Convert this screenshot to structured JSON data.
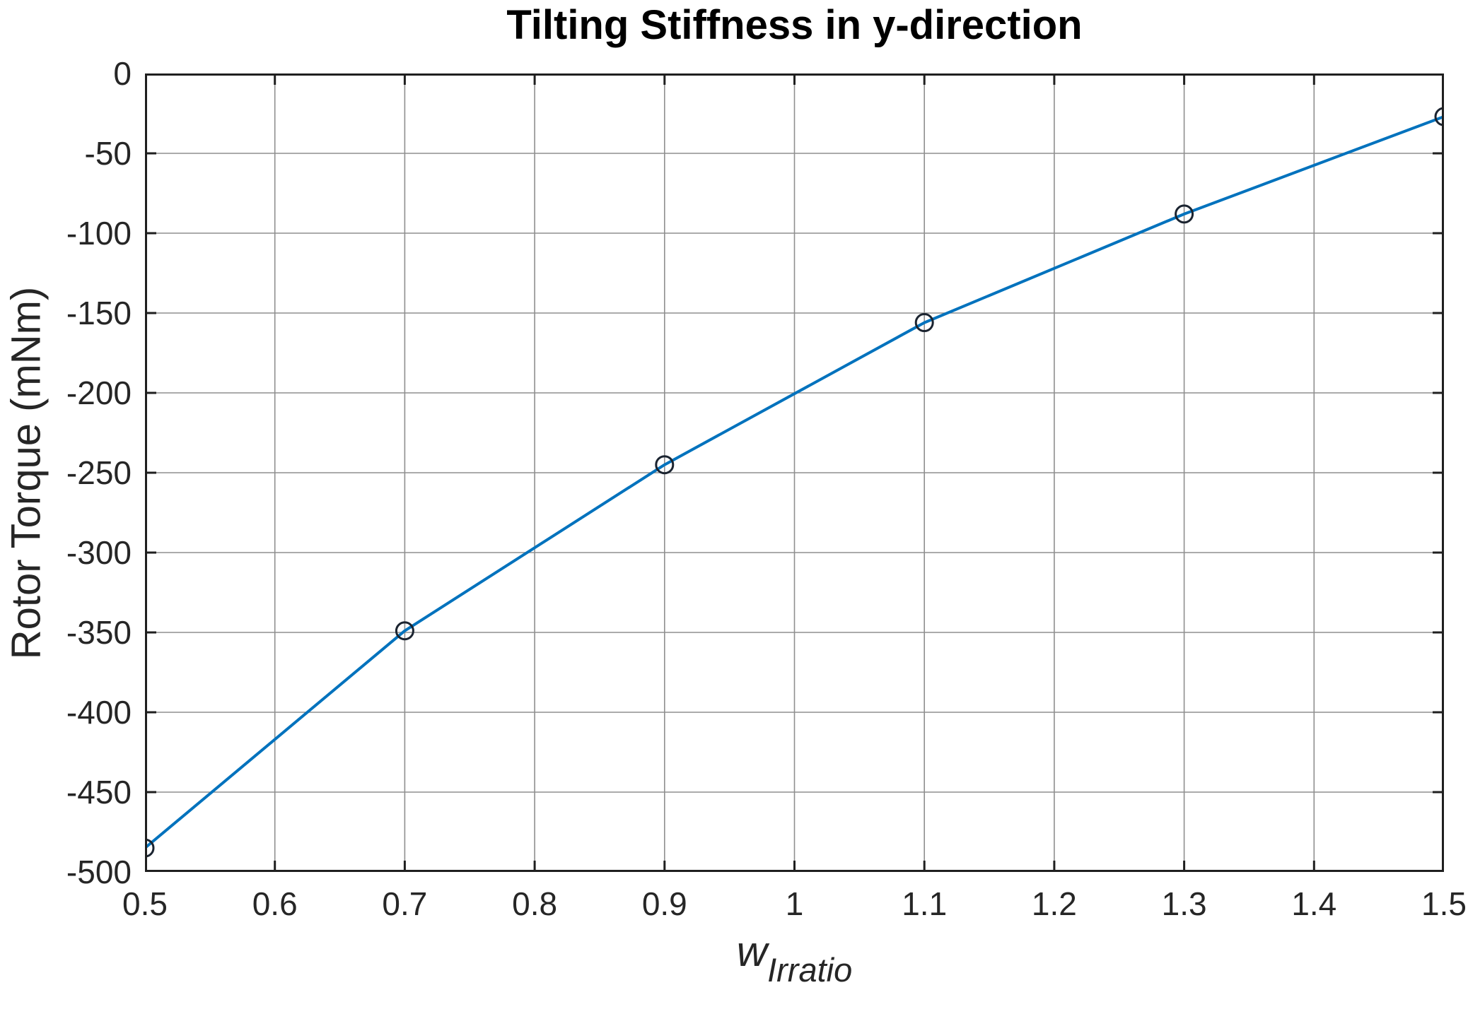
{
  "chart_data": {
    "type": "line",
    "title": "Tilting Stiffness in y-direction",
    "xlabel_base": "w",
    "xlabel_subscript": "Irratio",
    "ylabel": "Rotor Torque (mNm)",
    "series": [
      {
        "name": "rotor-torque-vs-wIrratio",
        "x": [
          0.5,
          0.7,
          0.9,
          1.1,
          1.3,
          1.5
        ],
        "y": [
          -485,
          -349,
          -245,
          -156,
          -88,
          -27
        ]
      }
    ],
    "xlim": [
      0.5,
      1.5
    ],
    "ylim": [
      -500,
      0
    ],
    "xticks": [
      0.5,
      0.6,
      0.7,
      0.8,
      0.9,
      1,
      1.1,
      1.2,
      1.3,
      1.4,
      1.5
    ],
    "xtick_labels": [
      "0.5",
      "0.6",
      "0.7",
      "0.8",
      "0.9",
      "1",
      "1.1",
      "1.2",
      "1.3",
      "1.4",
      "1.5"
    ],
    "yticks": [
      0,
      -50,
      -100,
      -150,
      -200,
      -250,
      -300,
      -350,
      -400,
      -450,
      -500
    ],
    "ytick_labels": [
      "0",
      "-50",
      "-100",
      "-150",
      "-200",
      "-250",
      "-300",
      "-350",
      "-400",
      "-450",
      "-500"
    ],
    "grid": true,
    "legend": "none",
    "marker": "o",
    "colors": {
      "line": "#0072BD",
      "marker_edge": "#1b2430",
      "grid": "#8f8f8f",
      "axis": "#1f1f1f",
      "text": "#262626",
      "title": "#000000",
      "background": "#ffffff"
    }
  }
}
